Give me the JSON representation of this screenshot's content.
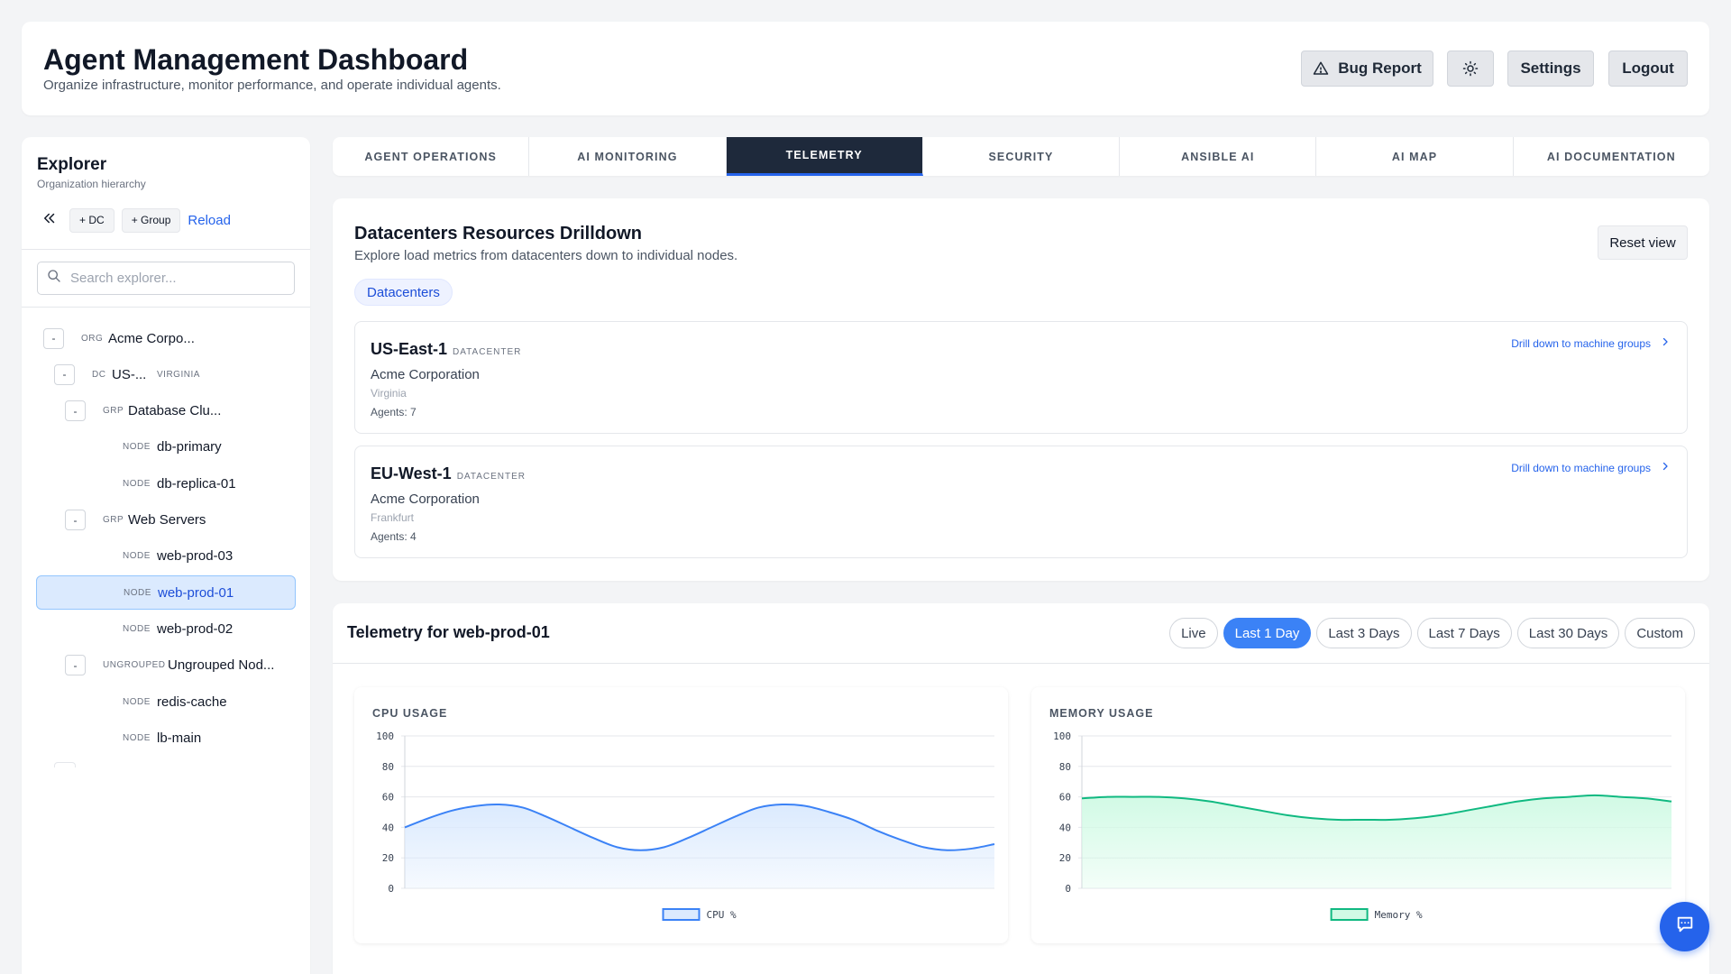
{
  "header": {
    "title": "Agent Management Dashboard",
    "subtitle": "Organize infrastructure, monitor performance, and operate individual agents.",
    "bug_report_label": "Bug Report",
    "settings_label": "Settings",
    "logout_label": "Logout"
  },
  "sidebar": {
    "title": "Explorer",
    "subtitle": "Organization hierarchy",
    "add_dc_label": "+ DC",
    "add_group_label": "+ Group",
    "reload_label": "Reload",
    "search_placeholder": "Search explorer...",
    "tree": [
      {
        "toggle": "-",
        "type": "ORG",
        "name": "Acme Corpo...",
        "sub": ""
      },
      {
        "toggle": "-",
        "type": "DC",
        "name": "US-...",
        "sub": "VIRGINIA"
      },
      {
        "toggle": "-",
        "type": "GRP",
        "name": "Database Clu...",
        "sub": ""
      },
      {
        "toggle": "",
        "type": "NODE",
        "name": "db-primary",
        "sub": ""
      },
      {
        "toggle": "",
        "type": "NODE",
        "name": "db-replica-01",
        "sub": ""
      },
      {
        "toggle": "-",
        "type": "GRP",
        "name": "Web Servers",
        "sub": ""
      },
      {
        "toggle": "",
        "type": "NODE",
        "name": "web-prod-03",
        "sub": ""
      },
      {
        "toggle": "",
        "type": "NODE",
        "name": "web-prod-01",
        "sub": "",
        "selected": true
      },
      {
        "toggle": "",
        "type": "NODE",
        "name": "web-prod-02",
        "sub": ""
      },
      {
        "toggle": "-",
        "type": "UNGROUPED",
        "name": "Ungrouped Nod...",
        "sub": ""
      },
      {
        "toggle": "",
        "type": "NODE",
        "name": "redis-cache",
        "sub": ""
      },
      {
        "toggle": "",
        "type": "NODE",
        "name": "lb-main",
        "sub": ""
      }
    ]
  },
  "tabs": [
    {
      "label": "AGENT OPERATIONS",
      "active": false
    },
    {
      "label": "AI MONITORING",
      "active": false
    },
    {
      "label": "TELEMETRY",
      "active": true
    },
    {
      "label": "SECURITY",
      "active": false
    },
    {
      "label": "ANSIBLE AI",
      "active": false
    },
    {
      "label": "AI MAP",
      "active": false
    },
    {
      "label": "AI DOCUMENTATION",
      "active": false
    }
  ],
  "drilldown": {
    "title": "Datacenters Resources Drilldown",
    "subtitle": "Explore load metrics from datacenters down to individual nodes.",
    "reset_label": "Reset view",
    "breadcrumb": "Datacenters",
    "datacenters": [
      {
        "name": "US-East-1",
        "tag": "DATACENTER",
        "org": "Acme Corporation",
        "location": "Virginia",
        "agents": "Agents: 7",
        "link": "Drill down to machine groups"
      },
      {
        "name": "EU-West-1",
        "tag": "DATACENTER",
        "org": "Acme Corporation",
        "location": "Frankfurt",
        "agents": "Agents: 4",
        "link": "Drill down to machine groups"
      }
    ]
  },
  "telemetry": {
    "title": "Telemetry for web-prod-01",
    "ranges": [
      {
        "label": "Live",
        "active": false
      },
      {
        "label": "Last 1 Day",
        "active": true
      },
      {
        "label": "Last 3 Days",
        "active": false
      },
      {
        "label": "Last 7 Days",
        "active": false
      },
      {
        "label": "Last 30 Days",
        "active": false
      },
      {
        "label": "Custom",
        "active": false
      }
    ]
  },
  "chart_data": [
    {
      "type": "area",
      "title": "CPU USAGE",
      "ylim": [
        0,
        100
      ],
      "yticks": [
        0,
        20,
        40,
        60,
        80,
        100
      ],
      "grid": true,
      "legend": "bottom",
      "series": [
        {
          "name": "CPU %",
          "color": "#3b82f6",
          "fill": "#dbeafe",
          "values": [
            40,
            46,
            51,
            54,
            55,
            53,
            47,
            40,
            33,
            27,
            25,
            27,
            33,
            40,
            47,
            53,
            55,
            54,
            50,
            45,
            38,
            32,
            27,
            25,
            26,
            29
          ]
        }
      ]
    },
    {
      "type": "area",
      "title": "MEMORY USAGE",
      "ylim": [
        0,
        100
      ],
      "yticks": [
        0,
        20,
        40,
        60,
        80,
        100
      ],
      "grid": true,
      "legend": "bottom",
      "series": [
        {
          "name": "Memory %",
          "color": "#10b981",
          "fill": "#d1fae5",
          "values": [
            59,
            60,
            60,
            60,
            59,
            57,
            54,
            51,
            48,
            46,
            45,
            45,
            45,
            46,
            48,
            51,
            54,
            57,
            59,
            60,
            61,
            60,
            59,
            57
          ]
        }
      ]
    }
  ]
}
